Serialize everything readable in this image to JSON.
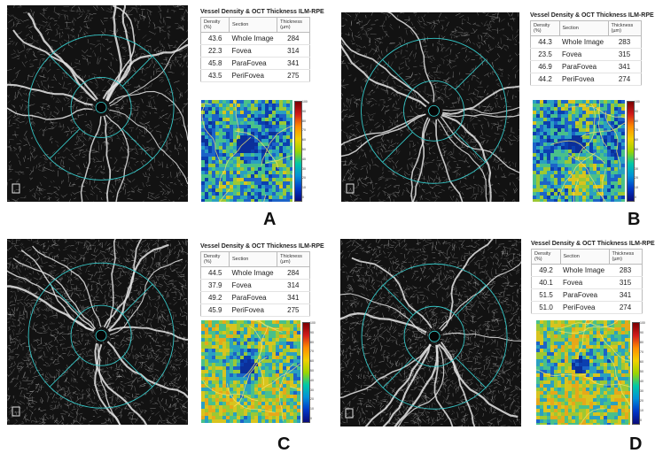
{
  "table_title": "Vessel Density & OCT Thickness ILM-RPE",
  "columns": [
    "Density (%)",
    "Section",
    "Thickness (µm)"
  ],
  "panels": [
    {
      "letter": "A",
      "rows": [
        {
          "density": "43.6",
          "section": "Whole Image",
          "thickness": "284"
        },
        {
          "density": "22.3",
          "section": "Fovea",
          "thickness": "314"
        },
        {
          "density": "45.8",
          "section": "ParaFovea",
          "thickness": "341"
        },
        {
          "density": "43.5",
          "section": "PeriFovea",
          "thickness": "275"
        }
      ]
    },
    {
      "letter": "B",
      "rows": [
        {
          "density": "44.3",
          "section": "Whole Image",
          "thickness": "283"
        },
        {
          "density": "23.5",
          "section": "Fovea",
          "thickness": "315"
        },
        {
          "density": "46.9",
          "section": "ParaFovea",
          "thickness": "341"
        },
        {
          "density": "44.2",
          "section": "PeriFovea",
          "thickness": "274"
        }
      ]
    },
    {
      "letter": "C",
      "rows": [
        {
          "density": "44.5",
          "section": "Whole Image",
          "thickness": "284"
        },
        {
          "density": "37.9",
          "section": "Fovea",
          "thickness": "314"
        },
        {
          "density": "49.2",
          "section": "ParaFovea",
          "thickness": "341"
        },
        {
          "density": "45.9",
          "section": "PeriFovea",
          "thickness": "275"
        }
      ]
    },
    {
      "letter": "D",
      "rows": [
        {
          "density": "49.2",
          "section": "Whole Image",
          "thickness": "283"
        },
        {
          "density": "40.1",
          "section": "Fovea",
          "thickness": "315"
        },
        {
          "density": "51.5",
          "section": "ParaFovea",
          "thickness": "341"
        },
        {
          "density": "51.0",
          "section": "PeriFovea",
          "thickness": "274"
        }
      ]
    }
  ],
  "colorbar_ticks": [
    "100",
    "90",
    "80",
    "70",
    "60",
    "50",
    "40",
    "30",
    "20",
    "10",
    "0"
  ],
  "colors": {
    "ring": "#35c6c6",
    "scan_bg": "#121212",
    "vessel": "#e8e8e8",
    "heatmap_low": "#0b3fb0",
    "heatmap_high": "#e6c21a"
  }
}
